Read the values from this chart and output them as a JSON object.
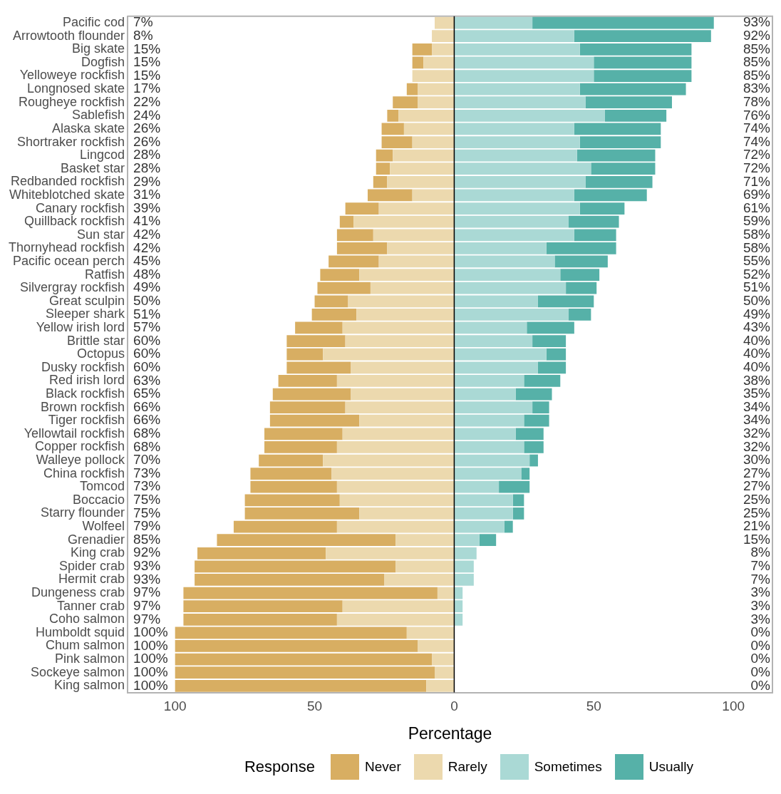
{
  "chart_data": {
    "type": "bar",
    "orientation": "horizontal",
    "stacked": true,
    "xlabel": "Percentage",
    "legend_title": "Response",
    "legend": "bottom",
    "categories": [
      "Pacific cod",
      "Arrowtooth flounder",
      "Big skate",
      "Dogfish",
      "Yelloweye rockfish",
      "Longnosed skate",
      "Rougheye rockfish",
      "Sablefish",
      "Alaska skate",
      "Shortraker rockfish",
      "Lingcod",
      "Basket star",
      "Redbanded rockfish",
      "Whiteblotched skate",
      "Canary rockfish",
      "Quillback rockfish",
      "Sun star",
      "Thornyhead rockfish",
      "Pacific ocean perch",
      "Ratfish",
      "Silvergray rockfish",
      "Great sculpin",
      "Sleeper shark",
      "Yellow irish lord",
      "Brittle star",
      "Octopus",
      "Dusky rockfish",
      "Red irish lord",
      "Black rockfish",
      "Brown rockfish",
      "Tiger rockfish",
      "Yellowtail rockfish",
      "Copper rockfish",
      "Walleye pollock",
      "China rockfish",
      "Tomcod",
      "Boccacio",
      "Starry flounder",
      "Wolfeel",
      "Grenadier",
      "King crab",
      "Spider crab",
      "Hermit crab",
      "Dungeness crab",
      "Tanner crab",
      "Coho salmon",
      "Humboldt squid",
      "Chum salmon",
      "Pink salmon",
      "Sockeye salmon",
      "King salmon"
    ],
    "series": [
      {
        "name": "Rarely",
        "color": "#ecd9ae",
        "values": [
          -7,
          -8,
          -8,
          -11,
          -15,
          -13,
          -13,
          -20,
          -18,
          -15,
          -22,
          -23,
          -24,
          -15,
          -27,
          -36,
          -29,
          -24,
          -27,
          -34,
          -30,
          -38,
          -35,
          -40,
          -39,
          -47,
          -37,
          -42,
          -37,
          -39,
          -34,
          -40,
          -42,
          -47,
          -44,
          -42,
          -41,
          -34,
          -42,
          -21,
          -46,
          -21,
          -25,
          -6,
          -40,
          -42,
          -17,
          -13,
          -8,
          -7,
          -10
        ]
      },
      {
        "name": "Never",
        "color": "#d8ae62",
        "values": [
          0,
          0,
          -7,
          -4,
          0,
          -4,
          -9,
          -4,
          -8,
          -11,
          -6,
          -5,
          -5,
          -16,
          -12,
          -5,
          -13,
          -18,
          -18,
          -14,
          -19,
          -12,
          -16,
          -17,
          -21,
          -13,
          -23,
          -21,
          -28,
          -27,
          -32,
          -28,
          -26,
          -23,
          -29,
          -31,
          -34,
          -41,
          -37,
          -64,
          -46,
          -72,
          -68,
          -91,
          -57,
          -55,
          -83,
          -87,
          -92,
          -93,
          -90
        ]
      },
      {
        "name": "Sometimes",
        "color": "#aad9d5",
        "values": [
          28,
          43,
          45,
          50,
          50,
          45,
          47,
          54,
          43,
          45,
          44,
          49,
          47,
          43,
          45,
          41,
          43,
          33,
          36,
          38,
          40,
          30,
          41,
          26,
          28,
          33,
          30,
          25,
          22,
          28,
          25,
          22,
          25,
          27,
          24,
          16,
          21,
          21,
          18,
          9,
          8,
          7,
          7,
          3,
          3,
          3,
          0,
          0,
          0,
          0,
          0
        ]
      },
      {
        "name": "Usually",
        "color": "#56b1a8",
        "values": [
          65,
          49,
          40,
          35,
          35,
          38,
          31,
          22,
          31,
          29,
          28,
          23,
          24,
          26,
          16,
          18,
          15,
          25,
          19,
          14,
          11,
          20,
          8,
          17,
          12,
          7,
          10,
          13,
          13,
          6,
          9,
          10,
          7,
          3,
          3,
          11,
          4,
          4,
          3,
          6,
          0,
          0,
          0,
          0,
          0,
          0,
          0,
          0,
          0,
          0,
          0
        ]
      }
    ],
    "xlim": [
      -117,
      114
    ],
    "xticks": [
      {
        "value": -100,
        "label": "100"
      },
      {
        "value": -50,
        "label": "50"
      },
      0,
      50,
      100
    ],
    "ref_lines": [
      {
        "axis": "x",
        "value": 0,
        "color": "#000000"
      }
    ],
    "totals": [
      [
        "7%",
        "93%"
      ],
      [
        "8%",
        "92%"
      ],
      [
        "15%",
        "85%"
      ],
      [
        "15%",
        "85%"
      ],
      [
        "15%",
        "85%"
      ],
      [
        "17%",
        "83%"
      ],
      [
        "22%",
        "78%"
      ],
      [
        "24%",
        "76%"
      ],
      [
        "26%",
        "74%"
      ],
      [
        "26%",
        "74%"
      ],
      [
        "28%",
        "72%"
      ],
      [
        "28%",
        "72%"
      ],
      [
        "29%",
        "71%"
      ],
      [
        "31%",
        "69%"
      ],
      [
        "39%",
        "61%"
      ],
      [
        "41%",
        "59%"
      ],
      [
        "42%",
        "58%"
      ],
      [
        "42%",
        "58%"
      ],
      [
        "45%",
        "55%"
      ],
      [
        "48%",
        "52%"
      ],
      [
        "49%",
        "51%"
      ],
      [
        "50%",
        "50%"
      ],
      [
        "51%",
        "49%"
      ],
      [
        "57%",
        "43%"
      ],
      [
        "60%",
        "40%"
      ],
      [
        "60%",
        "40%"
      ],
      [
        "60%",
        "40%"
      ],
      [
        "63%",
        "38%"
      ],
      [
        "65%",
        "35%"
      ],
      [
        "66%",
        "34%"
      ],
      [
        "66%",
        "34%"
      ],
      [
        "68%",
        "32%"
      ],
      [
        "68%",
        "32%"
      ],
      [
        "70%",
        "30%"
      ],
      [
        "73%",
        "27%"
      ],
      [
        "73%",
        "27%"
      ],
      [
        "75%",
        "25%"
      ],
      [
        "75%",
        "25%"
      ],
      [
        "79%",
        "21%"
      ],
      [
        "85%",
        "15%"
      ],
      [
        "92%",
        "8%"
      ],
      [
        "93%",
        "7%"
      ],
      [
        "93%",
        "7%"
      ],
      [
        "97%",
        "3%"
      ],
      [
        "97%",
        "3%"
      ],
      [
        "97%",
        "3%"
      ],
      [
        "100%",
        "0%"
      ],
      [
        "100%",
        "0%"
      ],
      [
        "100%",
        "0%"
      ],
      [
        "100%",
        "0%"
      ],
      [
        "100%",
        "0%"
      ]
    ]
  }
}
